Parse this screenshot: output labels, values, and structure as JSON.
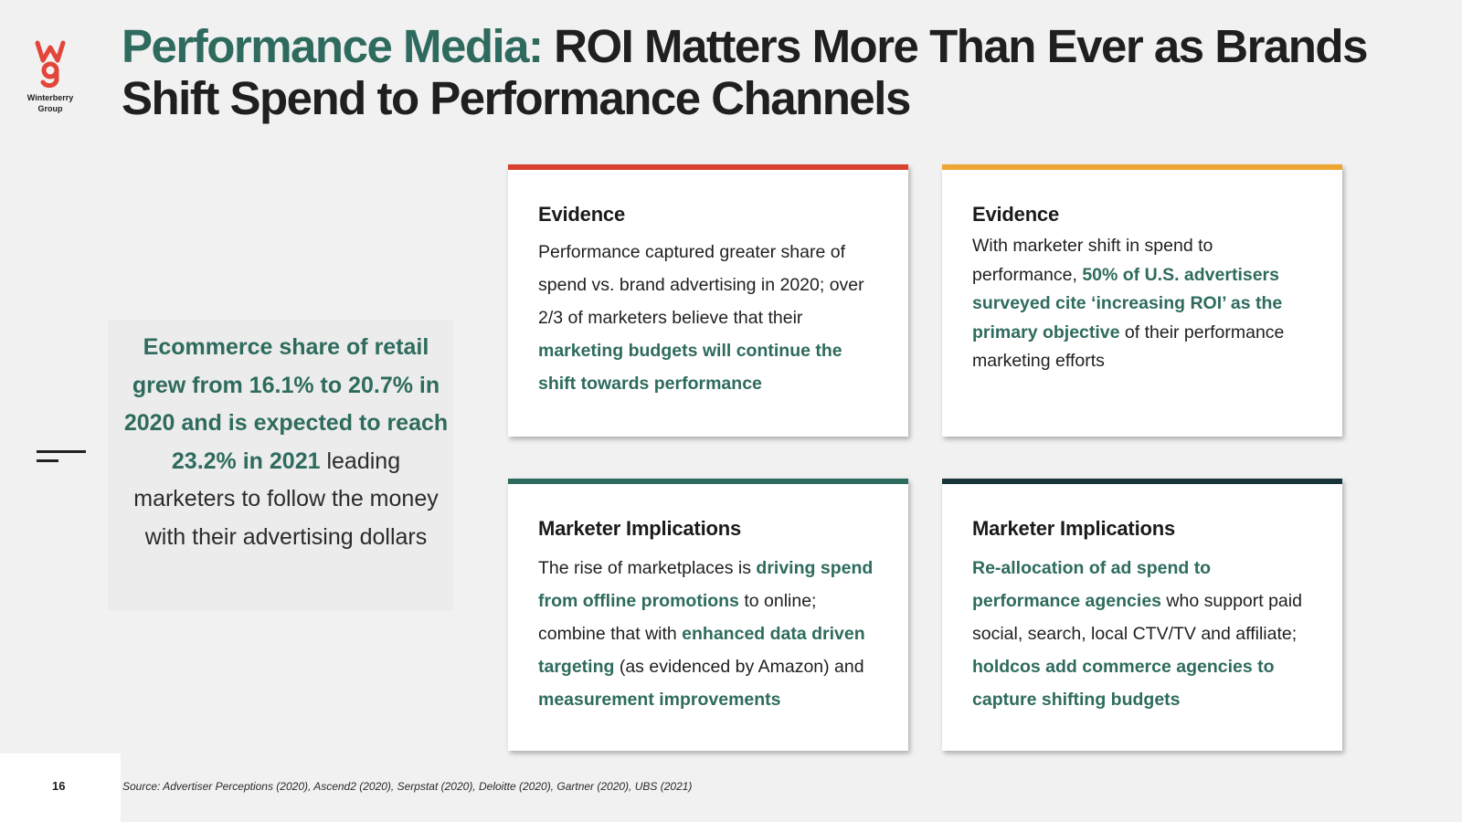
{
  "logo": {
    "brand_line1": "Winterberry",
    "brand_line2": "Group",
    "mark_color": "#e2463a"
  },
  "title": {
    "accent": "Performance Media:",
    "rest": "ROI Matters More Than Ever as Brands Shift Spend to Performance Channels"
  },
  "callout": {
    "highlight": "Ecommerce share of retail grew from 16.1% to 20.7% in 2020 and is expected to reach 23.2% in 2021",
    "rest": "leading marketers to follow the money with their advertising dollars"
  },
  "cards": [
    {
      "heading": "Evidence",
      "bar_color": "#d9412f",
      "text1": "Performance captured greater share of spend vs. brand advertising in 2020; over 2/3 of marketers believe that their ",
      "hl1": "marketing budgets will continue the shift towards performance"
    },
    {
      "heading": "Evidence",
      "bar_color": "#eea532",
      "text1": "With marketer shift in spend to performance, ",
      "hl1": "50% of U.S. advertisers surveyed cite ‘increasing ROI’ as the primary objective",
      "text2": " of their performance marketing efforts"
    },
    {
      "heading": "Marketer Implications",
      "bar_color": "#2e6b5e",
      "text1": "The rise of marketplaces is ",
      "hl1": "driving spend from offline promotions",
      "text2": " to online; combine that with ",
      "hl2": "enhanced data driven targeting",
      "text3": " (as evidenced by Amazon) and ",
      "hl3": "measurement improvements"
    },
    {
      "heading": "Marketer Implications",
      "bar_color": "#17343a",
      "hl1": "Re-allocation of ad spend to performance agencies",
      "text1": " who support paid social, search, local CTV/TV and affiliate; ",
      "hl2": "holdcos add commerce agencies to capture shifting budgets"
    }
  ],
  "footer": {
    "page_number": "16",
    "source": "Source: Advertiser Perceptions (2020), Ascend2 (2020), Serpstat (2020), Deloitte (2020), Gartner (2020), UBS (2021)"
  }
}
